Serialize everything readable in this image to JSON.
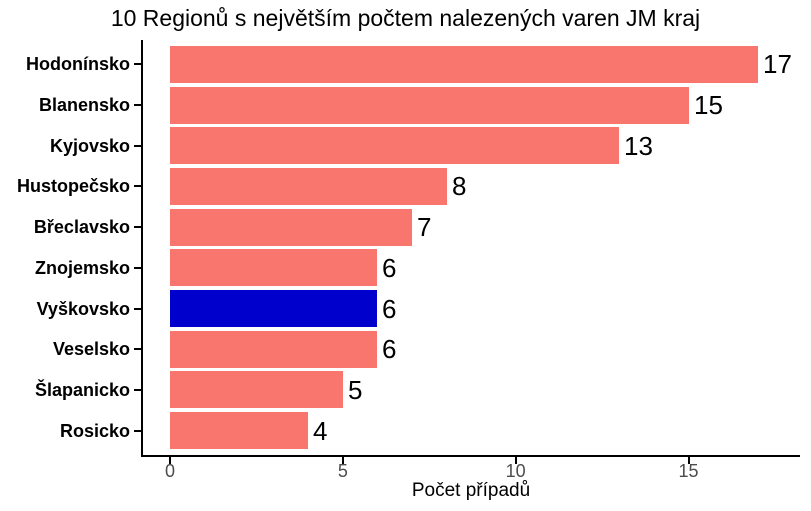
{
  "chart_data": {
    "type": "bar",
    "orientation": "horizontal",
    "title": "10 Regionů s největším počtem nalezených varen JM kraj",
    "xlabel": "Počet případů",
    "ylabel": "",
    "categories": [
      "Hodonínsko",
      "Blanensko",
      "Kyjovsko",
      "Hustopečsko",
      "Břeclavsko",
      "Znojemsko",
      "Vyškovsko",
      "Veselsko",
      "Šlapanicko",
      "Rosicko"
    ],
    "values": [
      17,
      15,
      13,
      8,
      7,
      6,
      6,
      6,
      5,
      4
    ],
    "bar_value_labels": [
      "17",
      "15",
      "13",
      "8",
      "7",
      "6",
      "6",
      "6",
      "5",
      "4"
    ],
    "highlighted_category": "Vyškovsko",
    "x_ticks": [
      0,
      5,
      10,
      15
    ],
    "x_tick_labels": [
      "0",
      "5",
      "10",
      "15"
    ],
    "xlim": [
      -0.8,
      18.2
    ],
    "grid": false,
    "legend": false,
    "colors": {
      "bar_default": "#F8766D",
      "bar_highlight": "#0000CD",
      "axis_tick_text": "#4D4D4D",
      "text": "#000000",
      "axis_line": "#000000",
      "background": "#FFFFFF"
    }
  }
}
